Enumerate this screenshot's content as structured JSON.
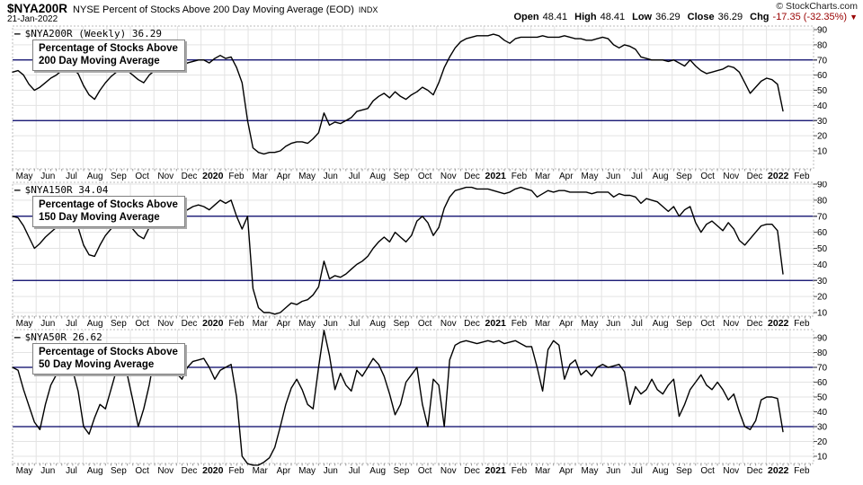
{
  "header": {
    "symbol": "$NYA200R",
    "title": "NYSE Percent of Stocks Above 200 Day Moving Average (EOD)",
    "exchange": "INDX",
    "date": "21-Jan-2022",
    "copyright": "© StockCharts.com",
    "quote": {
      "open_label": "Open",
      "open": "48.41",
      "high_label": "High",
      "high": "48.41",
      "low_label": "Low",
      "low": "36.29",
      "close_label": "Close",
      "close": "36.29",
      "chg_label": "Chg",
      "chg": "-17.35 (-32.35%)",
      "direction_icon": "▼"
    }
  },
  "colors": {
    "line": "#000000",
    "threshold_line": "#000066",
    "grid": "#e3e3e3",
    "border": "#bbbbbb",
    "tick": "#999999",
    "chg_negative": "#990000",
    "annotation_border": "#808080"
  },
  "chart_data": [
    {
      "type": "line",
      "frequency": "weekly",
      "series_label": "$NYA200R (Weekly) 36.29",
      "annotation": [
        "Percentage of Stocks Above",
        "200 Day Moving Average"
      ],
      "ylim": [
        0,
        95
      ],
      "yticks": [
        90,
        80,
        70,
        60,
        50,
        40,
        30,
        20,
        10
      ],
      "hlines": [
        70,
        30
      ],
      "x_labels": [
        "May",
        "Jun",
        "Jul",
        "Aug",
        "Sep",
        "Oct",
        "Nov",
        "Dec",
        "2020",
        "Feb",
        "Mar",
        "Apr",
        "May",
        "Jun",
        "Jul",
        "Aug",
        "Sep",
        "Oct",
        "Nov",
        "Dec",
        "2021",
        "Feb",
        "Mar",
        "Apr",
        "May",
        "Jun",
        "Jul",
        "Aug",
        "Sep",
        "Oct",
        "Nov",
        "Dec",
        "2022",
        "Feb"
      ],
      "values": [
        62,
        63,
        60,
        54,
        50,
        52,
        55,
        58,
        60,
        63,
        65,
        64,
        61,
        53,
        47,
        44,
        50,
        55,
        59,
        62,
        64,
        63,
        60,
        57,
        55,
        60,
        63,
        65,
        66,
        66,
        64,
        66,
        68,
        69,
        70,
        70,
        68,
        71,
        73,
        71,
        72,
        65,
        55,
        30,
        12,
        9,
        8,
        9,
        9,
        10,
        13,
        15,
        16,
        16,
        15,
        18,
        22,
        35,
        27,
        29,
        28,
        30,
        32,
        36,
        37,
        38,
        43,
        46,
        48,
        45,
        49,
        46,
        44,
        47,
        49,
        52,
        50,
        47,
        55,
        65,
        72,
        78,
        82,
        84,
        85,
        86,
        86,
        86,
        87,
        86,
        83,
        81,
        84,
        85,
        85,
        85,
        85,
        86,
        85,
        85,
        85,
        86,
        85,
        84,
        84,
        83,
        83,
        84,
        85,
        84,
        80,
        78,
        80,
        79,
        77,
        72,
        71,
        70,
        70,
        70,
        69,
        70,
        68,
        66,
        70,
        66,
        63,
        61,
        62,
        63,
        64,
        66,
        65,
        62,
        55,
        48,
        52,
        56,
        58,
        57,
        54,
        36.29
      ]
    },
    {
      "type": "line",
      "frequency": "weekly",
      "series_label": "$NYA150R 34.04",
      "annotation": [
        "Percentage of Stocks Above",
        "150 Day Moving Average"
      ],
      "ylim": [
        0,
        95
      ],
      "yticks": [
        90,
        80,
        70,
        60,
        50,
        40,
        30,
        20,
        10
      ],
      "hlines": [
        70,
        30
      ],
      "x_labels": [
        "May",
        "Jun",
        "Jul",
        "Aug",
        "Sep",
        "Oct",
        "Nov",
        "Dec",
        "2020",
        "Feb",
        "Mar",
        "Apr",
        "May",
        "Jun",
        "Jul",
        "Aug",
        "Sep",
        "Oct",
        "Nov",
        "Dec",
        "2021",
        "Feb",
        "Mar",
        "Apr",
        "May",
        "Jun",
        "Jul",
        "Aug",
        "Sep",
        "Oct",
        "Nov",
        "Dec",
        "2022",
        "Feb"
      ],
      "values": [
        70,
        69,
        64,
        57,
        50,
        53,
        57,
        60,
        63,
        66,
        68,
        67,
        63,
        52,
        46,
        45,
        52,
        58,
        62,
        66,
        68,
        66,
        62,
        58,
        56,
        63,
        68,
        70,
        71,
        70,
        69,
        72,
        74,
        76,
        77,
        76,
        74,
        77,
        80,
        78,
        80,
        70,
        62,
        70,
        25,
        13,
        10,
        10,
        9,
        10,
        13,
        16,
        15,
        17,
        18,
        21,
        26,
        42,
        31,
        33,
        32,
        34,
        37,
        40,
        42,
        45,
        50,
        54,
        57,
        54,
        60,
        57,
        54,
        58,
        67,
        70,
        66,
        58,
        63,
        75,
        82,
        86,
        87,
        88,
        88,
        87,
        87,
        87,
        86,
        85,
        84,
        85,
        87,
        88,
        87,
        86,
        82,
        84,
        86,
        85,
        86,
        86,
        85,
        85,
        85,
        85,
        84,
        85,
        85,
        85,
        82,
        84,
        83,
        83,
        82,
        78,
        81,
        80,
        79,
        76,
        73,
        76,
        70,
        74,
        76,
        66,
        60,
        65,
        67,
        64,
        61,
        66,
        62,
        55,
        52,
        56,
        60,
        64,
        65,
        65,
        61,
        34.04
      ]
    },
    {
      "type": "line",
      "frequency": "weekly",
      "series_label": "$NYA50R 26.62",
      "annotation": [
        "Percentage of Stocks Above",
        "50 Day Moving Average"
      ],
      "ylim": [
        0,
        95
      ],
      "yticks": [
        90,
        80,
        70,
        60,
        50,
        40,
        30,
        20,
        10
      ],
      "hlines": [
        70,
        30
      ],
      "x_labels": [
        "May",
        "Jun",
        "Jul",
        "Aug",
        "Sep",
        "Oct",
        "Nov",
        "Dec",
        "2020",
        "Feb",
        "Mar",
        "Apr",
        "May",
        "Jun",
        "Jul",
        "Aug",
        "Sep",
        "Oct",
        "Nov",
        "Dec",
        "2021",
        "Feb",
        "Mar",
        "Apr",
        "May",
        "Jun",
        "Jul",
        "Aug",
        "Sep",
        "Oct",
        "Nov",
        "Dec",
        "2022",
        "Feb"
      ],
      "values": [
        70,
        68,
        55,
        44,
        33,
        28,
        45,
        58,
        65,
        73,
        75,
        68,
        54,
        30,
        25,
        36,
        45,
        42,
        55,
        68,
        73,
        65,
        48,
        30,
        42,
        58,
        78,
        80,
        74,
        70,
        66,
        62,
        70,
        74,
        75,
        76,
        70,
        62,
        68,
        70,
        72,
        50,
        10,
        5,
        4,
        4,
        6,
        9,
        16,
        30,
        45,
        56,
        62,
        55,
        45,
        42,
        70,
        95,
        78,
        55,
        66,
        58,
        54,
        68,
        64,
        70,
        76,
        72,
        64,
        52,
        38,
        45,
        60,
        65,
        70,
        45,
        30,
        62,
        58,
        30,
        75,
        85,
        87,
        88,
        87,
        86,
        87,
        88,
        87,
        88,
        86,
        87,
        88,
        86,
        84,
        84,
        70,
        54,
        82,
        88,
        85,
        62,
        72,
        75,
        65,
        68,
        64,
        70,
        72,
        70,
        71,
        72,
        67,
        45,
        57,
        52,
        55,
        62,
        55,
        52,
        58,
        62,
        37,
        45,
        55,
        60,
        65,
        58,
        55,
        60,
        55,
        48,
        52,
        40,
        30,
        28,
        34,
        48,
        50,
        50,
        49,
        26.62
      ]
    }
  ]
}
